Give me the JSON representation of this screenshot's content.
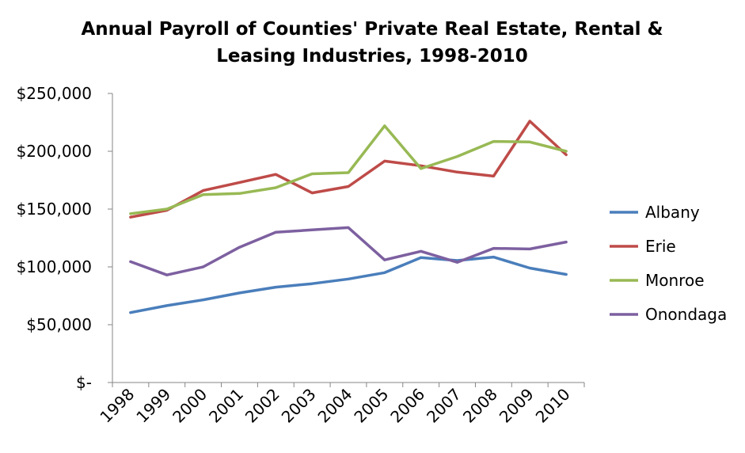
{
  "chart_data": {
    "type": "line",
    "title_lines": [
      "Annual Payroll of  Counties' Private Real Estate, Rental &",
      "Leasing Industries, 1998-2010"
    ],
    "xlabel": "",
    "ylabel": "",
    "categories": [
      "1998",
      "1999",
      "2000",
      "2001",
      "2002",
      "2003",
      "2004",
      "2005",
      "2006",
      "2007",
      "2008",
      "2009",
      "2010"
    ],
    "ylim": [
      0,
      250000
    ],
    "yticks": [
      {
        "value": 0,
        "label": "$-"
      },
      {
        "value": 50000,
        "label": "$50,000"
      },
      {
        "value": 100000,
        "label": "$100,000"
      },
      {
        "value": 150000,
        "label": "$150,000"
      },
      {
        "value": 200000,
        "label": "$200,000"
      },
      {
        "value": 250000,
        "label": "$250,000"
      }
    ],
    "grid": false,
    "legend_position": "right",
    "series": [
      {
        "name": "Albany",
        "color": "#4a7ebb",
        "values": [
          60500,
          66500,
          71500,
          77500,
          82500,
          85500,
          89500,
          95000,
          108000,
          105500,
          108500,
          99000,
          93500
        ]
      },
      {
        "name": "Erie",
        "color": "#be4b48",
        "values": [
          143000,
          149000,
          166000,
          173000,
          180000,
          164000,
          169500,
          191500,
          187500,
          182000,
          178500,
          226000,
          197000
        ]
      },
      {
        "name": "Monroe",
        "color": "#98b954",
        "values": [
          146000,
          150000,
          162500,
          163500,
          168500,
          180500,
          181500,
          222000,
          185000,
          195500,
          208500,
          208000,
          200000
        ]
      },
      {
        "name": "Onondaga",
        "color": "#7d60a0",
        "values": [
          104500,
          93000,
          100000,
          117000,
          130000,
          132000,
          134000,
          106000,
          113500,
          104000,
          116000,
          115500,
          121500
        ]
      }
    ]
  }
}
